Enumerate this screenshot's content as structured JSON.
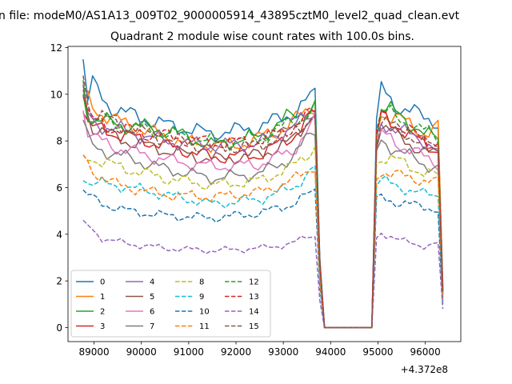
{
  "figure": {
    "suptitle": "n file: modeM0/AS1A13_009T02_9000005914_43895cztM0_level2_quad_clean.evt",
    "title": "Quadrant 2 module wise count rates with 100.0s bins."
  },
  "chart_data": {
    "type": "line",
    "title": "Quadrant 2 module wise count rates with 100.0s bins.",
    "xlabel": "",
    "ylabel": "",
    "x_offset_label": "+4.372e8",
    "x_offset": 437200000,
    "xlim": [
      88450,
      96750
    ],
    "ylim": [
      -0.6,
      12.05
    ],
    "x_ticks": [
      89000,
      90000,
      91000,
      92000,
      93000,
      94000,
      95000,
      96000
    ],
    "x_tick_labels": [
      "89000",
      "90000",
      "91000",
      "92000",
      "93000",
      "94000",
      "95000",
      "96000"
    ],
    "y_ticks": [
      0,
      2,
      4,
      6,
      8,
      10,
      12
    ],
    "y_tick_labels": [
      "0",
      "2",
      "4",
      "6",
      "8",
      "10",
      "12"
    ],
    "grid": false,
    "legend": {
      "position": "lower-left",
      "columns": 4
    },
    "segments": [
      {
        "x_start": 88770,
        "x_end": 93770,
        "step": 100
      },
      {
        "x_start": 93870,
        "x_end": 94770,
        "step": 100
      },
      {
        "x_start": 94870,
        "x_end": 96370,
        "step": 100
      }
    ],
    "series": [
      {
        "name": "0",
        "color": "#1f77b4",
        "dash": "solid",
        "anchors": [
          [
            88770,
            11.5
          ],
          [
            88870,
            9.8
          ],
          [
            88970,
            10.4
          ],
          [
            89300,
            9.5
          ],
          [
            89800,
            9.1
          ],
          [
            90500,
            8.7
          ],
          [
            91500,
            8.3
          ],
          [
            92500,
            8.6
          ],
          [
            93300,
            9.3
          ],
          [
            93700,
            10.1
          ],
          [
            93800,
            0
          ],
          [
            94870,
            0
          ],
          [
            94970,
            8.6
          ],
          [
            95070,
            10.3
          ],
          [
            95500,
            9.3
          ],
          [
            96000,
            9.1
          ],
          [
            96300,
            8.7
          ],
          [
            96370,
            1.8
          ]
        ]
      },
      {
        "name": "1",
        "color": "#ff7f0e",
        "dash": "solid",
        "anchors": [
          [
            88770,
            10.3
          ],
          [
            88900,
            9.6
          ],
          [
            89300,
            9.0
          ],
          [
            90000,
            8.5
          ],
          [
            91000,
            7.9
          ],
          [
            92000,
            7.8
          ],
          [
            93000,
            8.5
          ],
          [
            93700,
            9.6
          ],
          [
            93800,
            0
          ],
          [
            94870,
            0
          ],
          [
            94970,
            8.4
          ],
          [
            95070,
            9.2
          ],
          [
            95500,
            8.9
          ],
          [
            96000,
            8.3
          ],
          [
            96300,
            8.6
          ],
          [
            96370,
            1.7
          ]
        ]
      },
      {
        "name": "2",
        "color": "#2ca02c",
        "dash": "solid",
        "anchors": [
          [
            88770,
            10.0
          ],
          [
            88900,
            9.0
          ],
          [
            89500,
            8.7
          ],
          [
            90500,
            8.5
          ],
          [
            91500,
            7.8
          ],
          [
            92500,
            8.2
          ],
          [
            93100,
            9.0
          ],
          [
            93700,
            9.5
          ],
          [
            93800,
            0
          ],
          [
            94870,
            0
          ],
          [
            94970,
            8.3
          ],
          [
            95070,
            9.4
          ],
          [
            95500,
            9.1
          ],
          [
            96000,
            8.2
          ],
          [
            96300,
            8.2
          ],
          [
            96370,
            1.6
          ]
        ]
      },
      {
        "name": "3",
        "color": "#d62728",
        "dash": "solid",
        "anchors": [
          [
            88770,
            9.2
          ],
          [
            88900,
            8.6
          ],
          [
            89500,
            8.3
          ],
          [
            90500,
            7.8
          ],
          [
            91500,
            7.3
          ],
          [
            92500,
            7.4
          ],
          [
            93200,
            8.2
          ],
          [
            93700,
            9.3
          ],
          [
            93800,
            0
          ],
          [
            94870,
            0
          ],
          [
            94970,
            8.2
          ],
          [
            95070,
            9.0
          ],
          [
            95500,
            8.5
          ],
          [
            96000,
            7.8
          ],
          [
            96300,
            7.6
          ],
          [
            96370,
            1.5
          ]
        ]
      },
      {
        "name": "4",
        "color": "#9467bd",
        "dash": "solid",
        "anchors": [
          [
            88770,
            10.2
          ],
          [
            88900,
            8.8
          ],
          [
            89500,
            8.5
          ],
          [
            90500,
            8.0
          ],
          [
            91500,
            7.8
          ],
          [
            92500,
            7.9
          ],
          [
            93200,
            8.6
          ],
          [
            93700,
            9.2
          ],
          [
            93800,
            0
          ],
          [
            94870,
            0
          ],
          [
            94970,
            8.0
          ],
          [
            95070,
            8.8
          ],
          [
            95500,
            8.4
          ],
          [
            96000,
            8.0
          ],
          [
            96300,
            7.5
          ],
          [
            96370,
            1.5
          ]
        ]
      },
      {
        "name": "5",
        "color": "#8c564b",
        "dash": "solid",
        "anchors": [
          [
            88770,
            10.4
          ],
          [
            88900,
            8.7
          ],
          [
            89500,
            8.1
          ],
          [
            90500,
            7.6
          ],
          [
            91500,
            7.2
          ],
          [
            92500,
            7.4
          ],
          [
            93200,
            8.0
          ],
          [
            93700,
            9.4
          ],
          [
            93800,
            0
          ],
          [
            94870,
            0
          ],
          [
            94970,
            8.0
          ],
          [
            95070,
            8.7
          ],
          [
            95500,
            8.1
          ],
          [
            96000,
            7.5
          ],
          [
            96300,
            7.4
          ],
          [
            96370,
            1.4
          ]
        ]
      },
      {
        "name": "6",
        "color": "#e377c2",
        "dash": "solid",
        "anchors": [
          [
            88770,
            9.3
          ],
          [
            88900,
            8.2
          ],
          [
            89500,
            7.7
          ],
          [
            90500,
            7.2
          ],
          [
            91500,
            6.9
          ],
          [
            92500,
            7.0
          ],
          [
            93200,
            7.6
          ],
          [
            93700,
            8.9
          ],
          [
            93800,
            0
          ],
          [
            94870,
            0
          ],
          [
            94970,
            7.8
          ],
          [
            95070,
            8.3
          ],
          [
            95500,
            7.8
          ],
          [
            96000,
            7.3
          ],
          [
            96300,
            7.0
          ],
          [
            96370,
            1.4
          ]
        ]
      },
      {
        "name": "7",
        "color": "#7f7f7f",
        "dash": "solid",
        "anchors": [
          [
            88770,
            8.9
          ],
          [
            88900,
            7.8
          ],
          [
            89500,
            7.4
          ],
          [
            90500,
            6.8
          ],
          [
            91500,
            6.4
          ],
          [
            92500,
            6.6
          ],
          [
            93200,
            7.3
          ],
          [
            93700,
            8.6
          ],
          [
            93800,
            0
          ],
          [
            94870,
            0
          ],
          [
            94970,
            7.5
          ],
          [
            95070,
            8.0
          ],
          [
            95500,
            7.5
          ],
          [
            96000,
            7.0
          ],
          [
            96300,
            6.8
          ],
          [
            96370,
            1.3
          ]
        ]
      },
      {
        "name": "8",
        "color": "#bcbd22",
        "dash": "dashed",
        "anchors": [
          [
            88770,
            7.4
          ],
          [
            88900,
            7.3
          ],
          [
            89500,
            6.9
          ],
          [
            90500,
            6.4
          ],
          [
            91500,
            6.1
          ],
          [
            92500,
            6.3
          ],
          [
            93200,
            6.9
          ],
          [
            93700,
            7.8
          ],
          [
            93800,
            0
          ],
          [
            94870,
            0
          ],
          [
            94970,
            7.1
          ],
          [
            95070,
            7.3
          ],
          [
            95500,
            7.1
          ],
          [
            96000,
            6.6
          ],
          [
            96300,
            6.5
          ],
          [
            96370,
            1.3
          ]
        ]
      },
      {
        "name": "9",
        "color": "#17becf",
        "dash": "dashed",
        "anchors": [
          [
            88770,
            6.3
          ],
          [
            88900,
            6.2
          ],
          [
            89500,
            6.1
          ],
          [
            90500,
            5.7
          ],
          [
            91500,
            5.3
          ],
          [
            92500,
            5.5
          ],
          [
            93200,
            6.0
          ],
          [
            93700,
            6.9
          ],
          [
            93800,
            0
          ],
          [
            94870,
            0
          ],
          [
            94970,
            6.2
          ],
          [
            95070,
            6.3
          ],
          [
            95500,
            6.0
          ],
          [
            96000,
            5.7
          ],
          [
            96300,
            5.7
          ],
          [
            96370,
            1.1
          ]
        ]
      },
      {
        "name": "10",
        "color": "#1f77b4",
        "dash": "dashed",
        "anchors": [
          [
            88770,
            5.9
          ],
          [
            88900,
            5.6
          ],
          [
            89200,
            5.3
          ],
          [
            89700,
            5.0
          ],
          [
            90500,
            4.8
          ],
          [
            91500,
            4.7
          ],
          [
            92500,
            4.9
          ],
          [
            93200,
            5.3
          ],
          [
            93700,
            5.9
          ],
          [
            93800,
            0
          ],
          [
            94870,
            0
          ],
          [
            94970,
            5.4
          ],
          [
            95070,
            5.6
          ],
          [
            95500,
            5.3
          ],
          [
            96000,
            5.2
          ],
          [
            96300,
            5.0
          ],
          [
            96370,
            1.0
          ]
        ]
      },
      {
        "name": "11",
        "color": "#ff7f0e",
        "dash": "dashed",
        "anchors": [
          [
            88770,
            7.4
          ],
          [
            88900,
            6.8
          ],
          [
            89500,
            6.1
          ],
          [
            90500,
            5.7
          ],
          [
            91500,
            5.6
          ],
          [
            92500,
            5.8
          ],
          [
            93200,
            6.3
          ],
          [
            93700,
            7.0
          ],
          [
            93800,
            0
          ],
          [
            94870,
            0
          ],
          [
            94970,
            6.5
          ],
          [
            95070,
            6.7
          ],
          [
            95500,
            6.5
          ],
          [
            96000,
            6.3
          ],
          [
            96300,
            6.2
          ],
          [
            96370,
            1.2
          ]
        ]
      },
      {
        "name": "12",
        "color": "#2ca02c",
        "dash": "dashed",
        "anchors": [
          [
            88770,
            10.6
          ],
          [
            88900,
            8.9
          ],
          [
            89500,
            8.7
          ],
          [
            90500,
            8.3
          ],
          [
            91500,
            8.0
          ],
          [
            92500,
            8.1
          ],
          [
            93200,
            8.8
          ],
          [
            93700,
            9.4
          ],
          [
            93800,
            0
          ],
          [
            94870,
            0
          ],
          [
            94970,
            8.2
          ],
          [
            95070,
            9.3
          ],
          [
            95500,
            8.9
          ],
          [
            96000,
            8.4
          ],
          [
            96300,
            8.1
          ],
          [
            96370,
            1.6
          ]
        ]
      },
      {
        "name": "13",
        "color": "#d62728",
        "dash": "dashed",
        "anchors": [
          [
            88770,
            9.9
          ],
          [
            88900,
            8.9
          ],
          [
            89500,
            8.5
          ],
          [
            90500,
            8.2
          ],
          [
            91500,
            7.9
          ],
          [
            92500,
            8.0
          ],
          [
            93200,
            8.6
          ],
          [
            93700,
            9.3
          ],
          [
            93800,
            0
          ],
          [
            94870,
            0
          ],
          [
            94970,
            8.3
          ],
          [
            95070,
            9.1
          ],
          [
            95500,
            8.6
          ],
          [
            96000,
            8.0
          ],
          [
            96300,
            7.9
          ],
          [
            96370,
            1.6
          ]
        ]
      },
      {
        "name": "14",
        "color": "#9467bd",
        "dash": "dashed",
        "anchors": [
          [
            88770,
            4.6
          ],
          [
            88900,
            4.3
          ],
          [
            89200,
            3.8
          ],
          [
            89700,
            3.6
          ],
          [
            90500,
            3.4
          ],
          [
            91500,
            3.3
          ],
          [
            92500,
            3.4
          ],
          [
            93200,
            3.6
          ],
          [
            93600,
            4.0
          ],
          [
            93700,
            3.9
          ],
          [
            93800,
            0
          ],
          [
            94870,
            0
          ],
          [
            94970,
            3.8
          ],
          [
            95070,
            4.1
          ],
          [
            95500,
            3.7
          ],
          [
            96000,
            3.5
          ],
          [
            96300,
            3.6
          ],
          [
            96370,
            0.8
          ]
        ]
      },
      {
        "name": "15",
        "color": "#8c564b",
        "dash": "dashed",
        "anchors": [
          [
            88770,
            10.8
          ],
          [
            88900,
            9.3
          ],
          [
            89500,
            8.7
          ],
          [
            90500,
            8.1
          ],
          [
            91500,
            7.7
          ],
          [
            92500,
            7.8
          ],
          [
            93200,
            8.5
          ],
          [
            93700,
            9.1
          ],
          [
            93800,
            0
          ],
          [
            94870,
            0
          ],
          [
            94970,
            8.1
          ],
          [
            95070,
            8.9
          ],
          [
            95500,
            8.4
          ],
          [
            96000,
            7.9
          ],
          [
            96300,
            7.6
          ],
          [
            96370,
            1.5
          ]
        ]
      }
    ]
  }
}
